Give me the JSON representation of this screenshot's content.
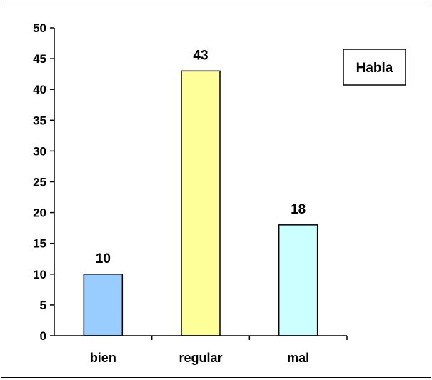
{
  "chart_data": {
    "type": "bar",
    "categories": [
      "bien",
      "regular",
      "mal"
    ],
    "values": [
      10,
      43,
      18
    ],
    "data_labels": [
      "10",
      "43",
      "18"
    ],
    "colors": [
      "#99ccff",
      "#ffff99",
      "#ccffff"
    ],
    "ylim": [
      0,
      50
    ],
    "yticks": [
      "0",
      "5",
      "10",
      "15",
      "20",
      "25",
      "30",
      "35",
      "40",
      "45",
      "50"
    ],
    "legend": {
      "label": "Habla",
      "placement": "top-right"
    },
    "grid": false
  }
}
